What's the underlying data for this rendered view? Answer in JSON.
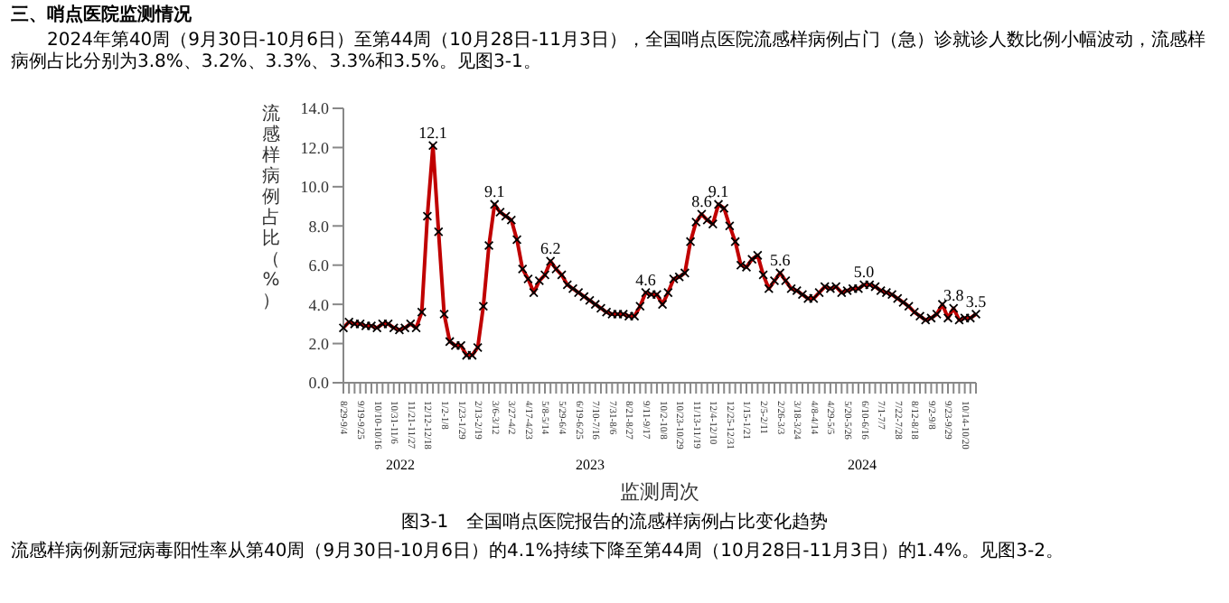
{
  "chart_data": {
    "type": "line",
    "title": "三、哨点医院监测情况",
    "subtitle": "2024年第40周（9月30日-10月6日）至第44周（10月28日-11月3日），全国哨点医院流感样病例占门（急）诊就诊人数比例小幅波动，流感样病例占比分别为3.8%、3.2%、3.3%、3.3%和3.5%。见图3-1。",
    "xlabel": "监测周次",
    "ylabel": "流感样病例占比（%）",
    "categories": [
      "8/29-9/4",
      null,
      null,
      "9/19-9/25",
      null,
      null,
      "10/10-10/16",
      null,
      null,
      "10/31-11/6",
      null,
      null,
      "11/21-11/27",
      null,
      null,
      "12/12-12/18",
      null,
      null,
      "1/2-1/8",
      null,
      null,
      "1/23-1/29",
      null,
      null,
      "2/13-2/19",
      null,
      null,
      "3/6-3/12",
      null,
      null,
      "3/27-4/2",
      null,
      null,
      "4/17-4/23",
      null,
      null,
      "5/8-5/14",
      null,
      null,
      "5/29-6/4",
      null,
      null,
      "6/19-6/25",
      null,
      null,
      "7/10-7/16",
      null,
      null,
      "7/31-8/6",
      null,
      null,
      "8/21-8/27",
      null,
      null,
      "9/11-9/17",
      null,
      null,
      "10/2-10/8",
      null,
      null,
      "10/23-10/29",
      null,
      null,
      "11/13-11/19",
      null,
      null,
      "12/4-12/10",
      null,
      null,
      "12/25-12/31",
      null,
      null,
      "1/15-1/21",
      null,
      null,
      "2/5-2/11",
      null,
      null,
      "2/26-3/3",
      null,
      null,
      "3/18-3/24",
      null,
      null,
      "4/8-4/14",
      null,
      null,
      "4/29-5/5",
      null,
      null,
      "5/20-5/26",
      null,
      null,
      "6/10-6/16",
      null,
      null,
      "7/1-7/7",
      null,
      null,
      "7/22-7/28",
      null,
      null,
      "8/12-8/18",
      null,
      null,
      "9/2-9/8",
      null,
      null,
      "9/23-9/29",
      null,
      null,
      "10/14-10/20",
      null,
      null
    ],
    "series": [
      {
        "color": "#c00000",
        "values": [
          2.8,
          3.1,
          3.0,
          3.0,
          2.9,
          2.9,
          2.8,
          3.0,
          3.0,
          2.8,
          2.7,
          2.8,
          3.0,
          2.8,
          3.6,
          8.5,
          12.1,
          7.7,
          3.5,
          2.1,
          1.9,
          1.9,
          1.4,
          1.4,
          1.8,
          3.9,
          7.0,
          9.1,
          8.7,
          8.5,
          8.3,
          7.3,
          5.8,
          5.3,
          4.6,
          5.2,
          5.5,
          6.2,
          5.8,
          5.5,
          5.0,
          4.8,
          4.6,
          4.4,
          4.2,
          4.0,
          3.8,
          3.6,
          3.5,
          3.5,
          3.5,
          3.4,
          3.4,
          3.9,
          4.6,
          4.5,
          4.5,
          4.0,
          4.6,
          5.3,
          5.4,
          5.6,
          7.2,
          8.2,
          8.6,
          8.3,
          8.1,
          9.1,
          8.9,
          8.0,
          7.2,
          6.0,
          5.9,
          6.3,
          6.5,
          5.5,
          4.8,
          5.2,
          5.6,
          5.2,
          4.8,
          4.7,
          4.5,
          4.3,
          4.3,
          4.6,
          4.9,
          4.8,
          4.9,
          4.6,
          4.7,
          4.8,
          4.8,
          5.0,
          5.0,
          4.9,
          4.7,
          4.6,
          4.5,
          4.3,
          4.1,
          3.9,
          3.6,
          3.4,
          3.2,
          3.3,
          3.5,
          4.0,
          3.3,
          3.8,
          3.2,
          3.3,
          3.3,
          3.5
        ],
        "value_labels": [
          null,
          null,
          null,
          null,
          null,
          null,
          null,
          null,
          null,
          null,
          null,
          null,
          null,
          null,
          null,
          null,
          "12.1",
          null,
          null,
          null,
          null,
          null,
          null,
          null,
          null,
          null,
          null,
          "9.1",
          null,
          null,
          null,
          null,
          null,
          null,
          null,
          null,
          null,
          "6.2",
          null,
          null,
          null,
          null,
          null,
          null,
          null,
          null,
          null,
          null,
          null,
          null,
          null,
          null,
          null,
          null,
          "4.6",
          null,
          null,
          null,
          null,
          null,
          null,
          null,
          null,
          null,
          "8.6",
          null,
          null,
          "9.1",
          null,
          null,
          null,
          null,
          null,
          null,
          null,
          null,
          null,
          null,
          "5.6",
          null,
          null,
          null,
          null,
          null,
          null,
          null,
          null,
          null,
          null,
          null,
          null,
          null,
          null,
          "5.0",
          null,
          null,
          null,
          null,
          null,
          null,
          null,
          null,
          null,
          null,
          null,
          null,
          null,
          null,
          null,
          "3.8",
          null,
          null,
          null,
          "3.5"
        ]
      }
    ],
    "ylim": [
      0,
      14
    ],
    "yticks": [
      {
        "value": 0,
        "label": "0.0"
      },
      {
        "value": 2,
        "label": "2.0"
      },
      {
        "value": 4,
        "label": "4.0"
      },
      {
        "value": 6,
        "label": "6.0"
      },
      {
        "value": 8,
        "label": "8.0"
      },
      {
        "value": 10,
        "label": "10.0"
      },
      {
        "value": 12,
        "label": "12.0"
      },
      {
        "value": 14,
        "label": "14.0"
      }
    ],
    "marker": "cross",
    "annotations": [
      "2022",
      "2023",
      "2024",
      "图3-1　全国哨点医院报告的流感样病例占比变化趋势",
      "流感样病例新冠病毒阳性率从第40周（9月30日-10月6日）的4.1%持续下降至第44周（10月28日-11月3日）的1.4%。见图3-2。"
    ]
  }
}
